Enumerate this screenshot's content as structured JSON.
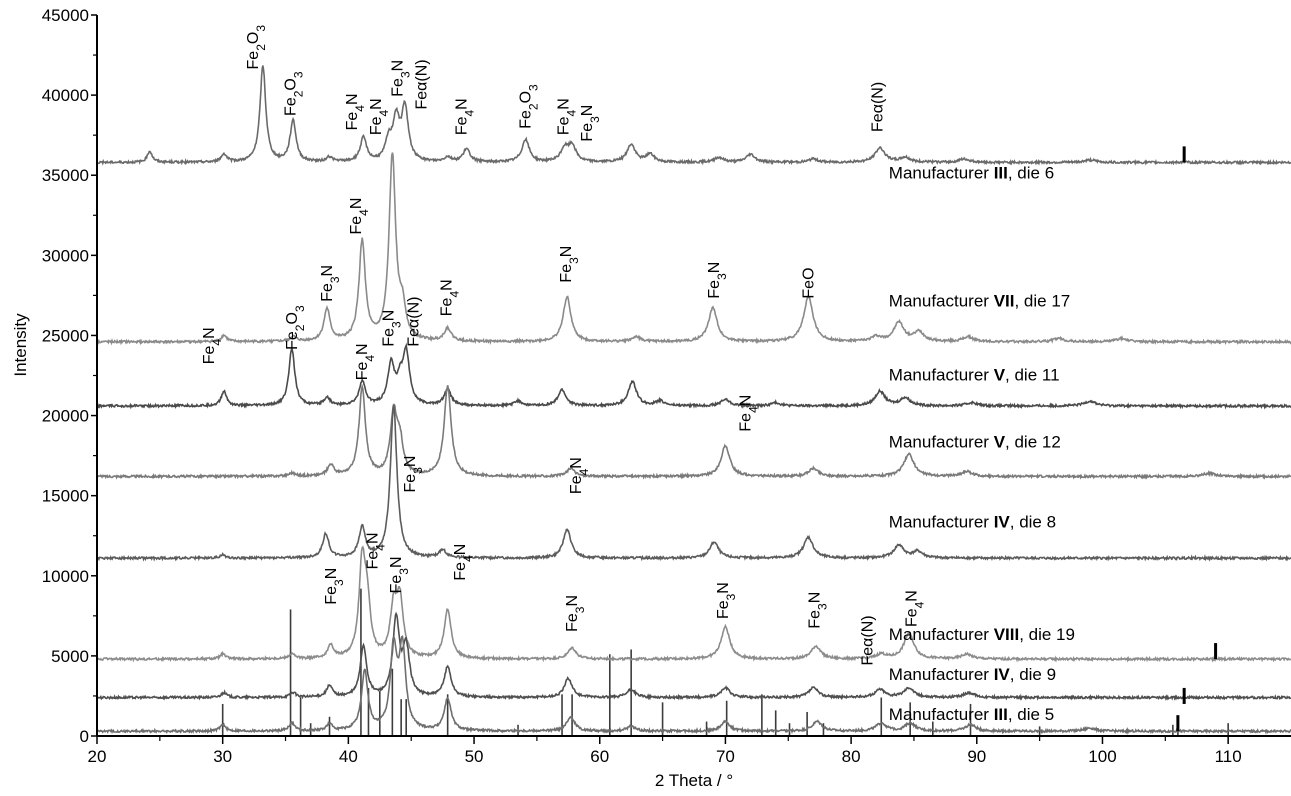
{
  "chart_data": {
    "type": "line",
    "title": "",
    "xlabel": "2 Theta / °",
    "ylabel": "Intensity",
    "xlim": [
      20,
      115
    ],
    "ylim": [
      0,
      45000
    ],
    "x_ticks": [
      20,
      30,
      40,
      50,
      60,
      70,
      80,
      90,
      100,
      110
    ],
    "y_ticks": [
      0,
      5000,
      10000,
      15000,
      20000,
      25000,
      30000,
      35000,
      40000,
      45000
    ],
    "grid": false,
    "legend": "inline labels at right",
    "series": [
      {
        "name": "Manufacturer III, die 6",
        "color": "#6a6a6a",
        "baseline": 35800,
        "peaks": [
          [
            24.2,
            700
          ],
          [
            30.1,
            500
          ],
          [
            33.2,
            6000
          ],
          [
            35.6,
            2600
          ],
          [
            38.5,
            300
          ],
          [
            41.2,
            1500
          ],
          [
            43.2,
            1200
          ],
          [
            43.8,
            2500
          ],
          [
            44.5,
            3300
          ],
          [
            47.9,
            300
          ],
          [
            49.4,
            800
          ],
          [
            54.1,
            1400
          ],
          [
            57.2,
            800
          ],
          [
            57.8,
            1000
          ],
          [
            62.5,
            1100
          ],
          [
            64.0,
            500
          ],
          [
            69.5,
            300
          ],
          [
            72.0,
            500
          ],
          [
            77.0,
            200
          ],
          [
            82.3,
            900
          ],
          [
            84.3,
            300
          ],
          [
            89.0,
            200
          ],
          [
            99.0,
            150
          ]
        ]
      },
      {
        "name": "Manufacturer VII, die 17",
        "color": "#8a8a8a",
        "baseline": 24600,
        "peaks": [
          [
            30.1,
            400
          ],
          [
            35.6,
            300
          ],
          [
            38.3,
            2000
          ],
          [
            41.1,
            6200
          ],
          [
            43.5,
            11500
          ],
          [
            44.3,
            1800
          ],
          [
            47.9,
            800
          ],
          [
            57.4,
            2800
          ],
          [
            62.9,
            300
          ],
          [
            69.0,
            2100
          ],
          [
            76.6,
            2800
          ],
          [
            82.0,
            300
          ],
          [
            83.8,
            1200
          ],
          [
            85.4,
            600
          ],
          [
            89.3,
            300
          ],
          [
            96.5,
            200
          ],
          [
            101.5,
            200
          ]
        ]
      },
      {
        "name": "Manufacturer V, die 11",
        "color": "#4a4a4a",
        "baseline": 20600,
        "peaks": [
          [
            30.1,
            900
          ],
          [
            35.5,
            3600
          ],
          [
            38.3,
            500
          ],
          [
            41.1,
            1500
          ],
          [
            43.4,
            2500
          ],
          [
            44.1,
            1200
          ],
          [
            44.6,
            3200
          ],
          [
            47.9,
            1000
          ],
          [
            53.5,
            300
          ],
          [
            57.0,
            1000
          ],
          [
            62.6,
            1500
          ],
          [
            64.8,
            300
          ],
          [
            70.0,
            400
          ],
          [
            74.0,
            200
          ],
          [
            82.3,
            900
          ],
          [
            84.3,
            500
          ],
          [
            89.6,
            200
          ],
          [
            99.0,
            300
          ]
        ]
      },
      {
        "name": "Manufacturer V, die 12",
        "color": "#7a7a7a",
        "baseline": 16200,
        "peaks": [
          [
            35.5,
            200
          ],
          [
            38.6,
            700
          ],
          [
            41.1,
            5500
          ],
          [
            43.6,
            3800
          ],
          [
            44.1,
            2000
          ],
          [
            47.9,
            5600
          ],
          [
            57.7,
            500
          ],
          [
            70.0,
            1900
          ],
          [
            77.0,
            500
          ],
          [
            84.6,
            1400
          ],
          [
            89.2,
            300
          ],
          [
            108.5,
            200
          ]
        ]
      },
      {
        "name": "Manufacturer IV, die 8",
        "color": "#5c5c5c",
        "baseline": 11100,
        "peaks": [
          [
            30.0,
            200
          ],
          [
            38.2,
            1500
          ],
          [
            41.1,
            1900
          ],
          [
            43.6,
            9500
          ],
          [
            47.5,
            500
          ],
          [
            57.4,
            1800
          ],
          [
            69.1,
            1000
          ],
          [
            76.6,
            1300
          ],
          [
            83.8,
            800
          ],
          [
            85.3,
            400
          ]
        ]
      },
      {
        "name": "Manufacturer VIII, die 19",
        "color": "#8c8c8c",
        "baseline": 4800,
        "peaks": [
          [
            30.0,
            300
          ],
          [
            35.5,
            300
          ],
          [
            38.6,
            800
          ],
          [
            41.1,
            5800
          ],
          [
            41.5,
            3000
          ],
          [
            43.6,
            3000
          ],
          [
            44.1,
            3500
          ],
          [
            47.9,
            3100
          ],
          [
            57.8,
            700
          ],
          [
            70.0,
            2000
          ],
          [
            77.2,
            800
          ],
          [
            82.4,
            300
          ],
          [
            84.6,
            1600
          ],
          [
            89.2,
            300
          ]
        ]
      },
      {
        "name": "Manufacturer IV, die 9",
        "color": "#4f4f4f",
        "baseline": 2400,
        "peaks": [
          [
            30.1,
            300
          ],
          [
            35.6,
            300
          ],
          [
            38.5,
            700
          ],
          [
            41.2,
            3200
          ],
          [
            43.8,
            4800
          ],
          [
            44.6,
            3000
          ],
          [
            47.9,
            1900
          ],
          [
            57.5,
            1200
          ],
          [
            62.5,
            500
          ],
          [
            70.0,
            600
          ],
          [
            77.0,
            600
          ],
          [
            82.3,
            500
          ],
          [
            84.6,
            600
          ],
          [
            89.4,
            300
          ]
        ]
      },
      {
        "name": "Manufacturer III, die 5",
        "color": "#6e6e6e",
        "baseline": 300,
        "peaks": [
          [
            30.0,
            400
          ],
          [
            35.5,
            500
          ],
          [
            38.5,
            400
          ],
          [
            41.3,
            3700
          ],
          [
            43.6,
            5000
          ],
          [
            44.3,
            5000
          ],
          [
            47.9,
            2000
          ],
          [
            57.7,
            900
          ],
          [
            62.5,
            300
          ],
          [
            70.0,
            600
          ],
          [
            77.3,
            600
          ],
          [
            82.4,
            500
          ],
          [
            84.7,
            500
          ],
          [
            89.5,
            400
          ],
          [
            99.0,
            200
          ]
        ]
      }
    ],
    "reference_lines": {
      "color": "#3c3c3c",
      "base": 0,
      "lines": [
        [
          30.0,
          2000
        ],
        [
          35.4,
          7900
        ],
        [
          36.2,
          2400
        ],
        [
          37.0,
          800
        ],
        [
          38.5,
          1200
        ],
        [
          41.0,
          9200
        ],
        [
          41.6,
          3000
        ],
        [
          42.5,
          2800
        ],
        [
          43.5,
          4200
        ],
        [
          44.2,
          2300
        ],
        [
          44.6,
          2300
        ],
        [
          47.9,
          2600
        ],
        [
          53.5,
          700
        ],
        [
          57.0,
          2600
        ],
        [
          57.8,
          2600
        ],
        [
          60.8,
          5100
        ],
        [
          62.5,
          5400
        ],
        [
          65.0,
          2100
        ],
        [
          68.5,
          900
        ],
        [
          70.1,
          2200
        ],
        [
          72.9,
          2600
        ],
        [
          74.0,
          1600
        ],
        [
          75.1,
          800
        ],
        [
          76.5,
          1500
        ],
        [
          77.8,
          800
        ],
        [
          82.4,
          2400
        ],
        [
          84.7,
          2100
        ],
        [
          86.5,
          900
        ],
        [
          89.5,
          2000
        ],
        [
          95.0,
          600
        ],
        [
          105.6,
          700
        ],
        [
          106.0,
          700
        ],
        [
          110.0,
          800
        ]
      ]
    },
    "series_labels": [
      {
        "text": "Manufacturer III, die 6",
        "x": 83.0,
        "y": 34800
      },
      {
        "text": "Manufacturer VII, die 17",
        "x": 83.0,
        "y": 26800
      },
      {
        "text": "Manufacturer V, die 11",
        "x": 83.0,
        "y": 22200
      },
      {
        "text": "Manufacturer V, die 12",
        "x": 83.0,
        "y": 18000
      },
      {
        "text": "Manufacturer IV, die 8",
        "x": 83.0,
        "y": 13000
      },
      {
        "text": "Manufacturer VIII, die 19",
        "x": 83.0,
        "y": 6000
      },
      {
        "text": "Manufacturer IV, die 9",
        "x": 83.0,
        "y": 3500
      },
      {
        "text": "Manufacturer III, die 5",
        "x": 83.0,
        "y": 1000
      }
    ],
    "annotations": [
      {
        "text": "Fe2O3",
        "x": 32.8,
        "y": 41600
      },
      {
        "text": "Fe2O3",
        "x": 35.8,
        "y": 38700
      },
      {
        "text": "Fe4N",
        "x": 40.7,
        "y": 37800
      },
      {
        "text": "Fe4N",
        "x": 42.6,
        "y": 37500
      },
      {
        "text": "Fe3N",
        "x": 44.3,
        "y": 39900
      },
      {
        "text": "Feα(N)",
        "x": 46.2,
        "y": 39100
      },
      {
        "text": "Fe4N",
        "x": 49.4,
        "y": 37500
      },
      {
        "text": "Fe2O3",
        "x": 54.5,
        "y": 37900
      },
      {
        "text": "Fe4N",
        "x": 57.5,
        "y": 37500
      },
      {
        "text": "Fe3N",
        "x": 59.4,
        "y": 37100
      },
      {
        "text": "Feα(N)",
        "x": 82.5,
        "y": 37700
      },
      {
        "text": "Fe4N",
        "x": 41.0,
        "y": 31300
      },
      {
        "text": "Fe3N",
        "x": 38.7,
        "y": 27100
      },
      {
        "text": "Fe4N",
        "x": 48.2,
        "y": 26200
      },
      {
        "text": "Fe3N",
        "x": 57.7,
        "y": 28300
      },
      {
        "text": "Fe3N",
        "x": 69.5,
        "y": 27300
      },
      {
        "text": "FeO",
        "x": 77.0,
        "y": 27300
      },
      {
        "text": "Fe2O3",
        "x": 35.9,
        "y": 24100
      },
      {
        "text": "Fe4N",
        "x": 29.3,
        "y": 23200
      },
      {
        "text": "Fe4N",
        "x": 41.5,
        "y": 22200
      },
      {
        "text": "Fe3N",
        "x": 43.6,
        "y": 24300
      },
      {
        "text": "Feα(N)",
        "x": 45.6,
        "y": 24300
      },
      {
        "text": "Fe4N",
        "x": 72.0,
        "y": 19000
      },
      {
        "text": "Fe3N",
        "x": 45.3,
        "y": 15200
      },
      {
        "text": "Fe4N",
        "x": 58.5,
        "y": 15100
      },
      {
        "text": "Fe3N",
        "x": 39.0,
        "y": 8200
      },
      {
        "text": "Fe4N",
        "x": 42.3,
        "y": 10400
      },
      {
        "text": "Fe3N",
        "x": 44.2,
        "y": 8900
      },
      {
        "text": "Fe4N",
        "x": 49.3,
        "y": 9700
      },
      {
        "text": "Fe3N",
        "x": 58.2,
        "y": 6500
      },
      {
        "text": "Fe3N",
        "x": 70.2,
        "y": 7300
      },
      {
        "text": "Fe3N",
        "x": 77.5,
        "y": 6700
      },
      {
        "text": "Feα(N)",
        "x": 81.7,
        "y": 4400
      },
      {
        "text": "Fe4N",
        "x": 85.2,
        "y": 6800
      }
    ],
    "markers": [
      {
        "x": 106.5,
        "y_from": 35800,
        "y_to": 36800
      },
      {
        "x": 109.0,
        "y_from": 4800,
        "y_to": 5800
      },
      {
        "x": 106.5,
        "y_from": 2000,
        "y_to": 3000
      },
      {
        "x": 106.0,
        "y_from": 300,
        "y_to": 1300
      }
    ]
  }
}
